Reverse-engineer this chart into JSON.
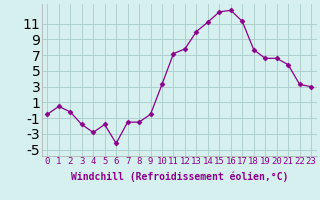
{
  "x": [
    0,
    1,
    2,
    3,
    4,
    5,
    6,
    7,
    8,
    9,
    10,
    11,
    12,
    13,
    14,
    15,
    16,
    17,
    18,
    19,
    20,
    21,
    22,
    23
  ],
  "y": [
    -0.5,
    0.5,
    -0.2,
    -1.8,
    -2.8,
    -1.8,
    -4.2,
    -1.5,
    -1.5,
    -0.5,
    3.3,
    7.2,
    7.8,
    10.0,
    11.2,
    12.5,
    12.7,
    11.3,
    7.7,
    6.6,
    6.6,
    5.8,
    3.3,
    3.0
  ],
  "line_color": "#8B008B",
  "marker": "D",
  "marker_size": 2.5,
  "bg_color": "#d6f0ef",
  "grid_color": "#aacccc",
  "xlabel": "Windchill (Refroidissement éolien,°C)",
  "xlabel_fontsize": 7,
  "yticks": [
    -5,
    -3,
    -1,
    1,
    3,
    5,
    7,
    9,
    11
  ],
  "xticks": [
    0,
    1,
    2,
    3,
    4,
    5,
    6,
    7,
    8,
    9,
    10,
    11,
    12,
    13,
    14,
    15,
    16,
    17,
    18,
    19,
    20,
    21,
    22,
    23
  ],
  "ylim": [
    -5.8,
    13.5
  ],
  "xlim": [
    -0.5,
    23.5
  ],
  "tick_fontsize": 6.5
}
